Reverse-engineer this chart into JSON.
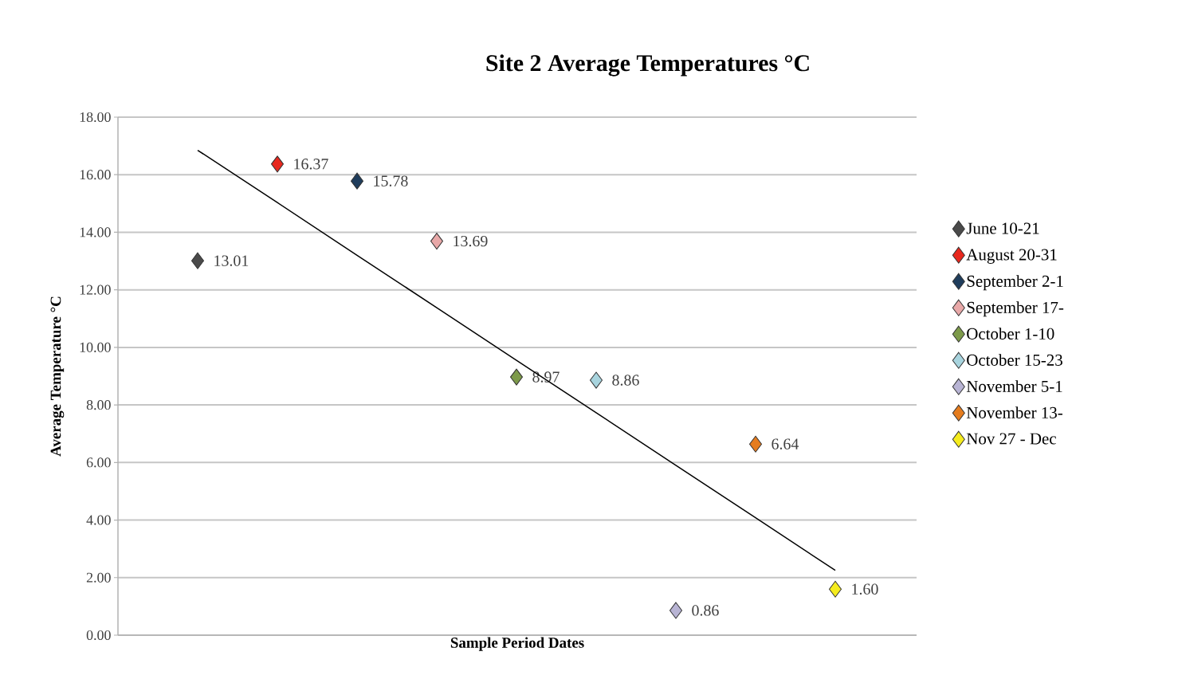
{
  "chart_data": {
    "type": "scatter",
    "title": "Site 2 Average Temperatures °C",
    "xlabel": "Sample Period Dates",
    "ylabel": "Average Temperature °C",
    "categories": [
      null,
      null,
      null,
      null,
      null,
      null,
      null,
      null,
      null
    ],
    "series": [
      {
        "name": "June 10-21",
        "color": "#4a4a4a",
        "values": [
          13.01,
          null,
          null,
          null,
          null,
          null,
          null,
          null,
          null
        ],
        "value_labels": [
          "13.01",
          null,
          null,
          null,
          null,
          null,
          null,
          null,
          null
        ]
      },
      {
        "name": "August 20-31",
        "color": "#e8281e",
        "values": [
          null,
          16.37,
          null,
          null,
          null,
          null,
          null,
          null,
          null
        ],
        "value_labels": [
          null,
          "16.37",
          null,
          null,
          null,
          null,
          null,
          null,
          null
        ]
      },
      {
        "name": "September 2-1",
        "color": "#1f3d5c",
        "values": [
          null,
          null,
          15.78,
          null,
          null,
          null,
          null,
          null,
          null
        ],
        "value_labels": [
          null,
          null,
          "15.78",
          null,
          null,
          null,
          null,
          null,
          null
        ]
      },
      {
        "name": "September 17-",
        "color": "#e8a8a8",
        "values": [
          null,
          null,
          null,
          13.69,
          null,
          null,
          null,
          null,
          null
        ],
        "value_labels": [
          null,
          null,
          null,
          "13.69",
          null,
          null,
          null,
          null,
          null
        ]
      },
      {
        "name": "October 1-10",
        "color": "#7d9a4a",
        "values": [
          null,
          null,
          null,
          null,
          8.97,
          null,
          null,
          null,
          null
        ],
        "value_labels": [
          null,
          null,
          null,
          null,
          "8.97",
          null,
          null,
          null,
          null
        ]
      },
      {
        "name": "October 15-23",
        "color": "#a8d4de",
        "values": [
          null,
          null,
          null,
          null,
          null,
          8.86,
          null,
          null,
          null
        ],
        "value_labels": [
          null,
          null,
          null,
          null,
          null,
          "8.86",
          null,
          null,
          null
        ]
      },
      {
        "name": "November 5-1",
        "color": "#b8b4d4",
        "values": [
          null,
          null,
          null,
          null,
          null,
          null,
          0.86,
          null,
          null
        ],
        "value_labels": [
          null,
          null,
          null,
          null,
          null,
          null,
          "0.86",
          null,
          null
        ]
      },
      {
        "name": "November 13-",
        "color": "#e57c1e",
        "values": [
          null,
          null,
          null,
          null,
          null,
          null,
          null,
          6.64,
          null
        ],
        "value_labels": [
          null,
          null,
          null,
          null,
          null,
          null,
          null,
          "6.64",
          null
        ]
      },
      {
        "name": "Nov 27 - Dec",
        "color": "#f5ec1e",
        "values": [
          null,
          null,
          null,
          null,
          null,
          null,
          null,
          null,
          1.6
        ],
        "value_labels": [
          null,
          null,
          null,
          null,
          null,
          null,
          null,
          null,
          "1.60"
        ]
      },
      {
        "type": "line",
        "color": "#000000",
        "marker": "none",
        "values": [
          16.85,
          15.03,
          13.2,
          11.38,
          9.55,
          7.73,
          5.9,
          4.08,
          2.25
        ]
      }
    ],
    "ylim": [
      0,
      18
    ],
    "yticks": [
      {
        "value": 0,
        "label": "0.00"
      },
      {
        "value": 2,
        "label": "2.00"
      },
      {
        "value": 4,
        "label": "4.00"
      },
      {
        "value": 6,
        "label": "6.00"
      },
      {
        "value": 8,
        "label": "8.00"
      },
      {
        "value": 10,
        "label": "10.00"
      },
      {
        "value": 12,
        "label": "12.00"
      },
      {
        "value": 14,
        "label": "14.00"
      },
      {
        "value": 16,
        "label": "16.00"
      },
      {
        "value": 18,
        "label": "18.00"
      }
    ],
    "grid": "y",
    "legend": "right",
    "marker": "diamond",
    "tick_labels": "y"
  }
}
